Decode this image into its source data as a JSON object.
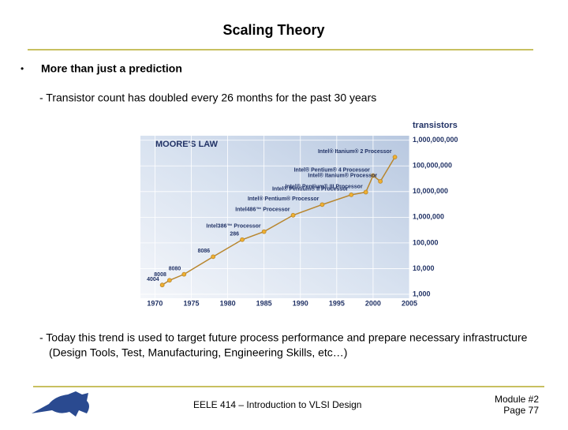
{
  "slide": {
    "title": "Scaling Theory",
    "bullet": "•",
    "point": "More than just a prediction",
    "sub_point": "- Transistor count has doubled every 26 months for the past 30 years",
    "trend_line_1": "- Today this trend is used to target future process performance and prepare necessary infrastructure",
    "trend_line_2": "(Design Tools, Test, Manufacturing, Engineering Skills, etc…)",
    "footer": {
      "course": "EELE 414 – Introduction to VLSI Design",
      "module": "Module #2",
      "page": "Page 77"
    }
  },
  "chart_data": {
    "type": "line",
    "title": "MOORE'S LAW",
    "y_label": "transistors",
    "log_y": true,
    "color": "#b8862e",
    "marker_color": "#f0b030",
    "x": [
      1971,
      1972,
      1974,
      1978,
      1982,
      1985,
      1989,
      1993,
      1997,
      1999,
      2000,
      2001,
      2003
    ],
    "values": [
      2300,
      3500,
      6000,
      29000,
      134000,
      275000,
      1200000,
      3100000,
      7500000,
      9500000,
      42000000,
      25000000,
      220000000
    ],
    "point_labels": [
      "4004",
      "8008",
      "8080",
      "8086",
      "286",
      "Intel386™ Processor",
      "Intel486™ Processor",
      "Intel® Pentium® Processor",
      "Intel® Pentium® II Processor",
      "Intel® Pentium® III Processor",
      "Intel® Pentium® 4 Processor",
      "Intel® Itanium® Processor",
      "Intel® Itanium® 2 Processor"
    ],
    "xlim": [
      1968,
      2005
    ],
    "xticks": [
      1970,
      1975,
      1980,
      1985,
      1990,
      1995,
      2000,
      2005
    ],
    "ylim": [
      700,
      1500000000
    ],
    "yticks": [
      {
        "value": 1000,
        "label": "1,000"
      },
      {
        "value": 10000,
        "label": "10,000"
      },
      {
        "value": 100000,
        "label": "100,000"
      },
      {
        "value": 1000000,
        "label": "1,000,000"
      },
      {
        "value": 10000000,
        "label": "10,000,000"
      },
      {
        "value": 100000000,
        "label": "100,000,000"
      },
      {
        "value": 1000000000,
        "label": "1,000,000,000"
      }
    ]
  }
}
